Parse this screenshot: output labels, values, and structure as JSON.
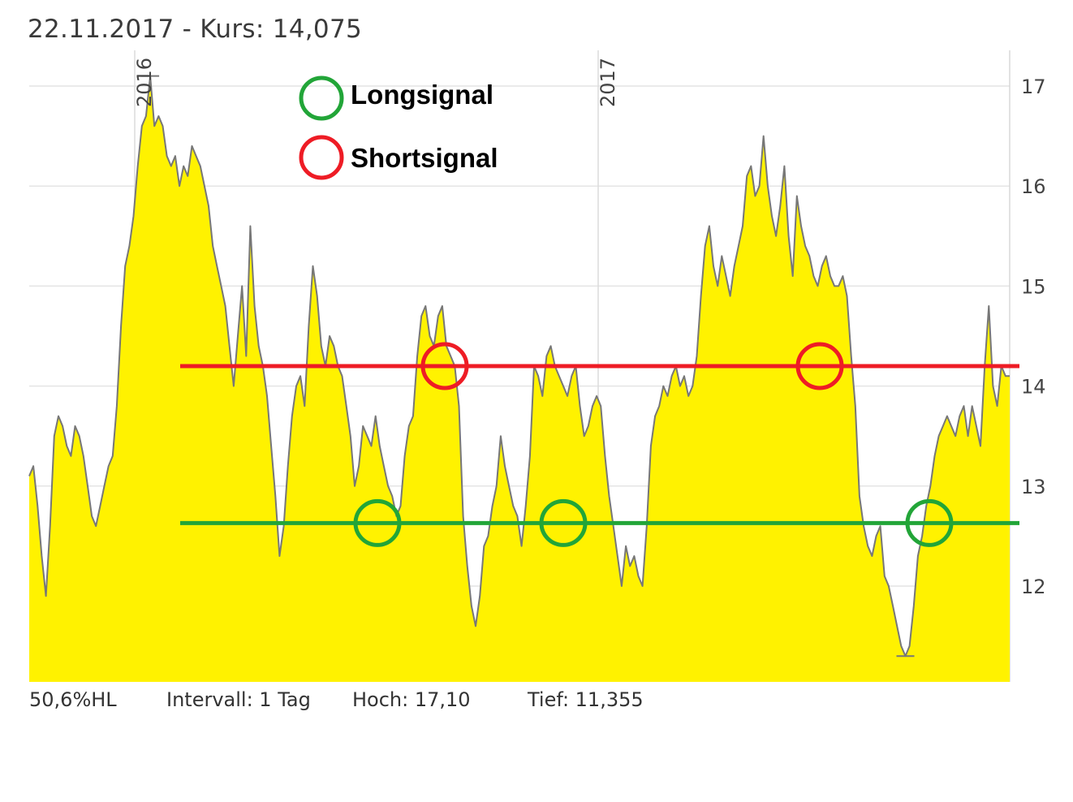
{
  "header": {
    "date": "22.11.2017",
    "separator": " - ",
    "kurs_label": "Kurs:",
    "kurs_value": "14,075"
  },
  "legend": {
    "long_label": "Longsignal",
    "short_label": "Shortsignal"
  },
  "footer": {
    "hl": "50,6%HL",
    "intervall": "Intervall: 1 Tag",
    "hoch": "Hoch:  17,10",
    "tief": "Tief:  11,355"
  },
  "chart_data": {
    "type": "area",
    "x_tick_labels": [
      "2016",
      "2017"
    ],
    "y_ticks": [
      12,
      13,
      14,
      15,
      16,
      17
    ],
    "ylim": [
      11.1,
      17.35
    ],
    "grid": true,
    "fill_color": "#FFF200",
    "line_color": "#777777",
    "series": [
      {
        "values": [
          13.1,
          13.2,
          12.8,
          12.3,
          11.9,
          12.6,
          13.5,
          13.7,
          13.6,
          13.4,
          13.3,
          13.6,
          13.5,
          13.3,
          13.0,
          12.7,
          12.6,
          12.8,
          13.0,
          13.2,
          13.3,
          13.8,
          14.6,
          15.2,
          15.4,
          15.7,
          16.2,
          16.6,
          16.7,
          17.1,
          16.6,
          16.7,
          16.6,
          16.3,
          16.2,
          16.3,
          16.0,
          16.2,
          16.1,
          16.4,
          16.3,
          16.2,
          16.0,
          15.8,
          15.4,
          15.2,
          15.0,
          14.8,
          14.4,
          14.0,
          14.5,
          15.0,
          14.3,
          15.6,
          14.8,
          14.4,
          14.2,
          13.9,
          13.4,
          12.9,
          12.3,
          12.6,
          13.2,
          13.7,
          14.0,
          14.1,
          13.8,
          14.6,
          15.2,
          14.9,
          14.4,
          14.2,
          14.5,
          14.4,
          14.2,
          14.1,
          13.8,
          13.5,
          13.0,
          13.2,
          13.6,
          13.5,
          13.4,
          13.7,
          13.4,
          13.2,
          13.0,
          12.9,
          12.7,
          12.8,
          13.3,
          13.6,
          13.7,
          14.3,
          14.7,
          14.8,
          14.5,
          14.4,
          14.7,
          14.8,
          14.4,
          14.3,
          14.2,
          13.8,
          12.7,
          12.2,
          11.8,
          11.6,
          11.9,
          12.4,
          12.5,
          12.8,
          13.0,
          13.5,
          13.2,
          13.0,
          12.8,
          12.7,
          12.4,
          12.8,
          13.3,
          14.2,
          14.1,
          13.9,
          14.3,
          14.4,
          14.2,
          14.1,
          14.0,
          13.9,
          14.1,
          14.2,
          13.8,
          13.5,
          13.6,
          13.8,
          13.9,
          13.8,
          13.3,
          12.9,
          12.6,
          12.3,
          12.0,
          12.4,
          12.2,
          12.3,
          12.1,
          12.0,
          12.6,
          13.4,
          13.7,
          13.8,
          14.0,
          13.9,
          14.1,
          14.2,
          14.0,
          14.1,
          13.9,
          14.0,
          14.3,
          14.9,
          15.4,
          15.6,
          15.2,
          15.0,
          15.3,
          15.1,
          14.9,
          15.2,
          15.4,
          15.6,
          16.1,
          16.2,
          15.9,
          16.0,
          16.5,
          16.0,
          15.7,
          15.5,
          15.8,
          16.2,
          15.5,
          15.1,
          15.9,
          15.6,
          15.4,
          15.3,
          15.1,
          15.0,
          15.2,
          15.3,
          15.1,
          15.0,
          15.0,
          15.1,
          14.9,
          14.3,
          13.8,
          12.9,
          12.6,
          12.4,
          12.3,
          12.5,
          12.6,
          12.1,
          12.0,
          11.8,
          11.6,
          11.4,
          11.3,
          11.4,
          11.8,
          12.3,
          12.5,
          12.8,
          13.0,
          13.3,
          13.5,
          13.6,
          13.7,
          13.6,
          13.5,
          13.7,
          13.8,
          13.5,
          13.8,
          13.6,
          13.4,
          14.2,
          14.8,
          14.0,
          13.8,
          14.2,
          14.1,
          14.1
        ]
      }
    ],
    "reference_lines": [
      {
        "name": "Shortsignal",
        "y": 14.2,
        "color": "#EE1C25"
      },
      {
        "name": "Longsignal",
        "y": 12.63,
        "color": "#22A538"
      }
    ]
  }
}
